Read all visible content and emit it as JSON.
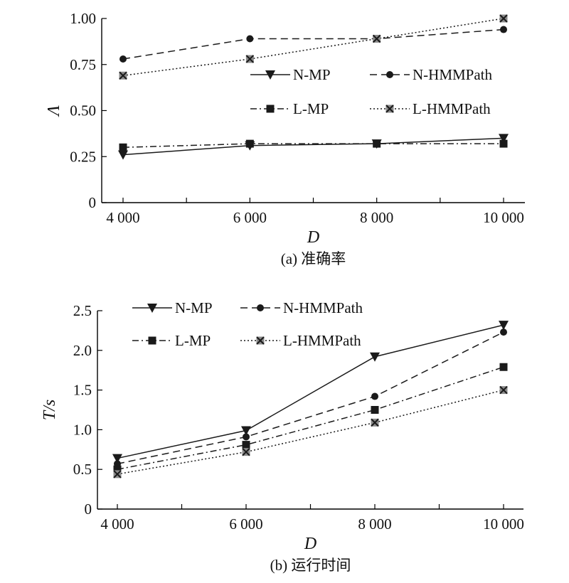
{
  "chart_data": [
    {
      "type": "line",
      "caption": "(a) 准确率",
      "xlabel": "D",
      "ylabel": "Λ",
      "x": [
        4000,
        6000,
        8000,
        10000
      ],
      "x_tick_labels": [
        "4 000",
        "6 000",
        "8 000",
        "10 000"
      ],
      "y_tick_labels": [
        "0",
        "0.25",
        "0.50",
        "0.75",
        "1.00"
      ],
      "ylim": [
        0,
        1.0
      ],
      "grid": false,
      "legend_position": "middle-right",
      "series": [
        {
          "name": "N-MP",
          "marker": "triangle-down",
          "dash": "solid",
          "values": [
            0.26,
            0.31,
            0.32,
            0.35
          ]
        },
        {
          "name": "N-HMMPath",
          "marker": "circle",
          "dash": "dashed",
          "values": [
            0.78,
            0.89,
            0.89,
            0.94
          ]
        },
        {
          "name": "L-MP",
          "marker": "square",
          "dash": "dash-dot",
          "values": [
            0.3,
            0.32,
            0.32,
            0.32
          ]
        },
        {
          "name": "L-HMMPath",
          "marker": "x-square",
          "dash": "dotted",
          "values": [
            0.69,
            0.78,
            0.89,
            1.0
          ]
        }
      ]
    },
    {
      "type": "line",
      "caption": "(b) 运行时间",
      "xlabel": "D",
      "ylabel": "T/s",
      "x": [
        4000,
        6000,
        8000,
        10000
      ],
      "x_tick_labels": [
        "4 000",
        "6 000",
        "8 000",
        "10 000"
      ],
      "y_tick_labels": [
        "0",
        "0.5",
        "1.0",
        "1.5",
        "2.0",
        "2.5"
      ],
      "ylim": [
        0,
        2.5
      ],
      "grid": false,
      "legend_position": "top-left",
      "series": [
        {
          "name": "N-MP",
          "marker": "triangle-down",
          "dash": "solid",
          "values": [
            0.64,
            0.99,
            1.92,
            2.32
          ]
        },
        {
          "name": "N-HMMPath",
          "marker": "circle",
          "dash": "dashed",
          "values": [
            0.57,
            0.91,
            1.42,
            2.23
          ]
        },
        {
          "name": "L-MP",
          "marker": "square",
          "dash": "dash-dot",
          "values": [
            0.5,
            0.81,
            1.25,
            1.79
          ]
        },
        {
          "name": "L-HMMPath",
          "marker": "x-square",
          "dash": "dotted",
          "values": [
            0.44,
            0.72,
            1.09,
            1.5
          ]
        }
      ]
    }
  ]
}
